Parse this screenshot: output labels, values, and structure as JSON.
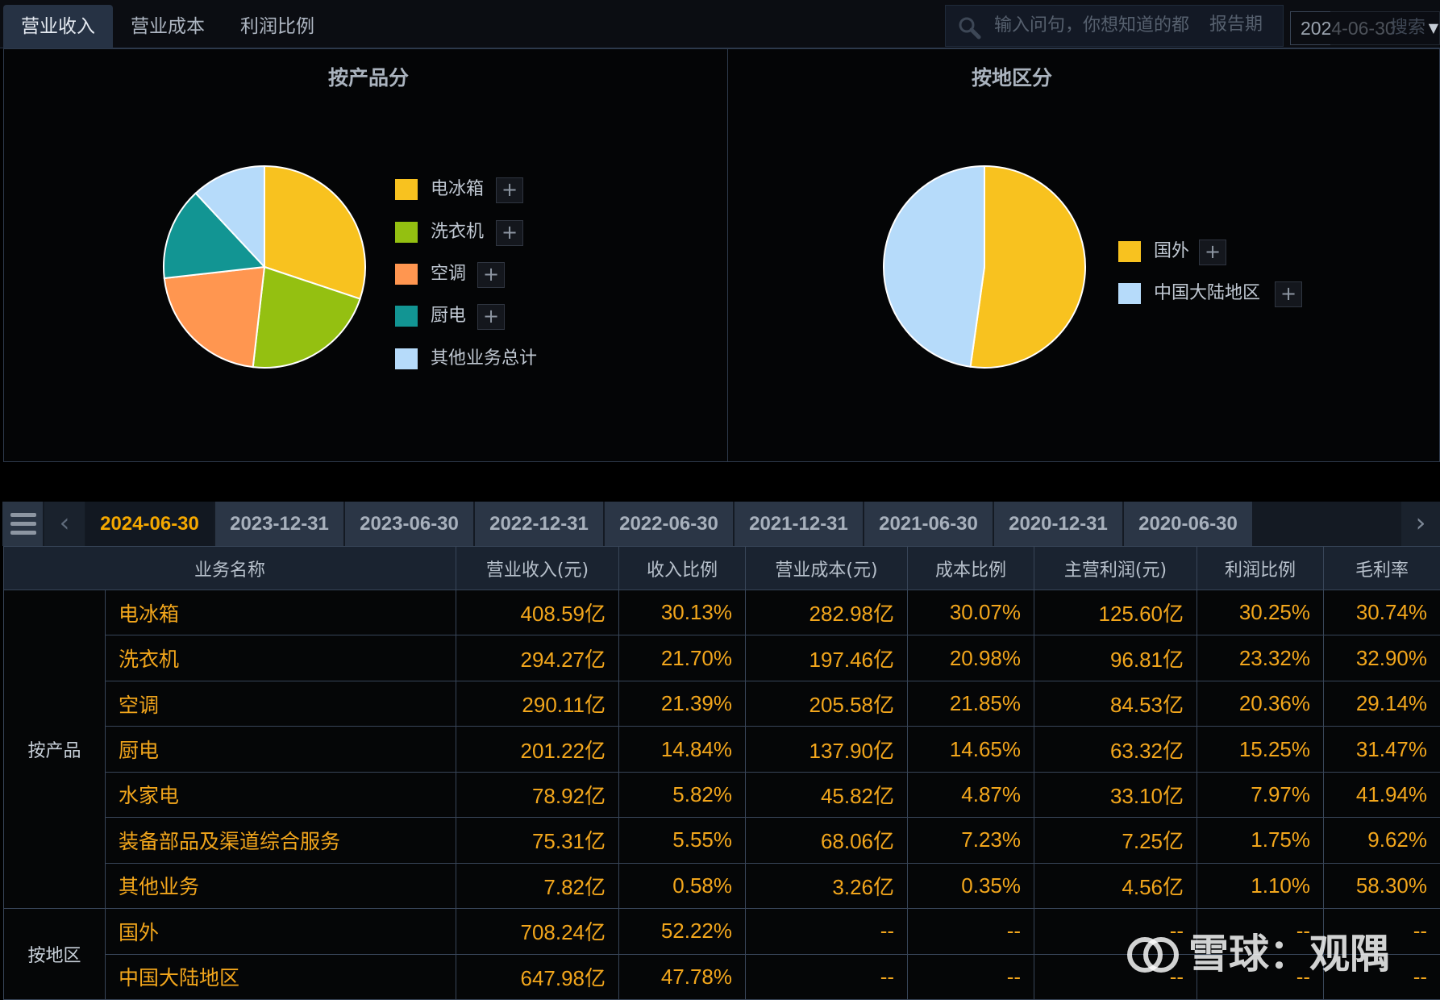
{
  "tabs": [
    "营业收入",
    "营业成本",
    "利润比例"
  ],
  "search": {
    "placeholder": "输入问句，你想知道的都",
    "period_label": "报告期",
    "period_value": "2024-06-30",
    "button": "搜索"
  },
  "colors": {
    "yellow": "#f8c21f",
    "green": "#94c011",
    "orange": "#ff9650",
    "teal": "#129593",
    "lightblue": "#b6dbfa",
    "accent": "#f5a800"
  },
  "charts": [
    {
      "title": "按产品分",
      "slices": [
        {
          "label": "电冰箱",
          "value": 408.59,
          "color": "#f8c21f"
        },
        {
          "label": "洗衣机",
          "value": 294.27,
          "color": "#94c011"
        },
        {
          "label": "空调",
          "value": 290.11,
          "color": "#ff9650"
        },
        {
          "label": "厨电",
          "value": 201.22,
          "color": "#129593"
        },
        {
          "label": "其他业务总计",
          "value": 162.05,
          "color": "#b6dbfa"
        }
      ]
    },
    {
      "title": "按地区分",
      "slices": [
        {
          "label": "国外",
          "value": 708.24,
          "color": "#f8c21f"
        },
        {
          "label": "中国大陆地区",
          "value": 647.98,
          "color": "#b6dbfa"
        }
      ]
    }
  ],
  "dates": [
    "2024-06-30",
    "2023-12-31",
    "2023-06-30",
    "2022-12-31",
    "2022-06-30",
    "2021-12-31",
    "2021-06-30",
    "2020-12-31",
    "2020-06-30"
  ],
  "table": {
    "headers": [
      "业务名称",
      "营业收入(元)",
      "收入比例",
      "营业成本(元)",
      "成本比例",
      "主营利润(元)",
      "利润比例",
      "毛利率"
    ],
    "groups": [
      {
        "name": "按产品",
        "rows": [
          [
            "电冰箱",
            "408.59亿",
            "30.13%",
            "282.98亿",
            "30.07%",
            "125.60亿",
            "30.25%",
            "30.74%"
          ],
          [
            "洗衣机",
            "294.27亿",
            "21.70%",
            "197.46亿",
            "20.98%",
            "96.81亿",
            "23.32%",
            "32.90%"
          ],
          [
            "空调",
            "290.11亿",
            "21.39%",
            "205.58亿",
            "21.85%",
            "84.53亿",
            "20.36%",
            "29.14%"
          ],
          [
            "厨电",
            "201.22亿",
            "14.84%",
            "137.90亿",
            "14.65%",
            "63.32亿",
            "15.25%",
            "31.47%"
          ],
          [
            "水家电",
            "78.92亿",
            "5.82%",
            "45.82亿",
            "4.87%",
            "33.10亿",
            "7.97%",
            "41.94%"
          ],
          [
            "装备部品及渠道综合服务",
            "75.31亿",
            "5.55%",
            "68.06亿",
            "7.23%",
            "7.25亿",
            "1.75%",
            "9.62%"
          ],
          [
            "其他业务",
            "7.82亿",
            "0.58%",
            "3.26亿",
            "0.35%",
            "4.56亿",
            "1.10%",
            "58.30%"
          ]
        ]
      },
      {
        "name": "按地区",
        "rows": [
          [
            "国外",
            "708.24亿",
            "52.22%",
            "--",
            "--",
            "--",
            "--",
            "--"
          ],
          [
            "中国大陆地区",
            "647.98亿",
            "47.78%",
            "--",
            "--",
            "--",
            "--",
            "--"
          ]
        ]
      }
    ]
  },
  "watermark": "雪球：观隅"
}
